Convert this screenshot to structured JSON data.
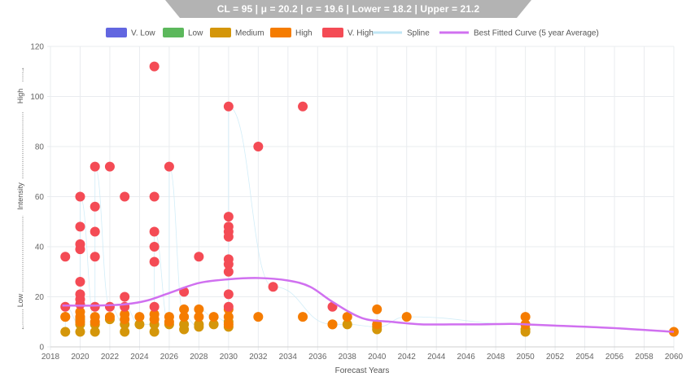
{
  "header": {
    "stats": "CL = 95 | μ = 20.2 | σ = 19.6 | Lower = 18.2 | Upper = 21.2"
  },
  "chart_data": {
    "type": "scatter",
    "xlabel": "Forecast Years",
    "ylabel_low": "Low",
    "ylabel_mid": "Intensity",
    "ylabel_high": "High",
    "xlim": [
      2018,
      2060
    ],
    "ylim": [
      0,
      120
    ],
    "x_ticks": [
      "2018",
      "2020",
      "2022",
      "2024",
      "2026",
      "2028",
      "2030",
      "2032",
      "2034",
      "2036",
      "2038",
      "2040",
      "2042",
      "2044",
      "2046",
      "2048",
      "2050",
      "2052",
      "2054",
      "2056",
      "2058",
      "2060"
    ],
    "y_ticks": [
      "0",
      "20",
      "40",
      "60",
      "80",
      "100",
      "120"
    ],
    "grid": true,
    "legend_position": "top",
    "legend": [
      {
        "label": "V. Low",
        "color": "#6266e0",
        "kind": "box"
      },
      {
        "label": "Low",
        "color": "#5cb85c",
        "kind": "box"
      },
      {
        "label": "Medium",
        "color": "#d4960a",
        "kind": "box"
      },
      {
        "label": "High",
        "color": "#f57c00",
        "kind": "box"
      },
      {
        "label": "V. High",
        "color": "#f44b55",
        "kind": "box"
      },
      {
        "label": "Spline",
        "color": "#bfe6f5",
        "kind": "line"
      },
      {
        "label": "Best Fitted Curve (5 year Average)",
        "color": "#d070f0",
        "kind": "line"
      }
    ],
    "series": [
      {
        "name": "V. High",
        "color": "#f44b55",
        "points": [
          [
            2019,
            36
          ],
          [
            2019,
            16
          ],
          [
            2020,
            60
          ],
          [
            2020,
            48
          ],
          [
            2020,
            41
          ],
          [
            2020,
            39
          ],
          [
            2020,
            26
          ],
          [
            2020,
            21
          ],
          [
            2020,
            19
          ],
          [
            2020,
            17
          ],
          [
            2021,
            72
          ],
          [
            2021,
            56
          ],
          [
            2021,
            46
          ],
          [
            2021,
            36
          ],
          [
            2021,
            16
          ],
          [
            2022,
            72
          ],
          [
            2022,
            16
          ],
          [
            2023,
            60
          ],
          [
            2023,
            20
          ],
          [
            2023,
            16
          ],
          [
            2025,
            112
          ],
          [
            2025,
            60
          ],
          [
            2025,
            46
          ],
          [
            2025,
            40
          ],
          [
            2025,
            34
          ],
          [
            2025,
            16
          ],
          [
            2026,
            72
          ],
          [
            2027,
            22
          ],
          [
            2028,
            36
          ],
          [
            2030,
            96
          ],
          [
            2030,
            52
          ],
          [
            2030,
            48
          ],
          [
            2030,
            46
          ],
          [
            2030,
            44
          ],
          [
            2030,
            35
          ],
          [
            2030,
            33
          ],
          [
            2030,
            30
          ],
          [
            2030,
            21
          ],
          [
            2030,
            16
          ],
          [
            2032,
            80
          ],
          [
            2033,
            24
          ],
          [
            2035,
            96
          ],
          [
            2037,
            16
          ]
        ]
      },
      {
        "name": "High",
        "color": "#f57c00",
        "points": [
          [
            2019,
            12
          ],
          [
            2020,
            14
          ],
          [
            2020,
            12
          ],
          [
            2020,
            10
          ],
          [
            2021,
            12
          ],
          [
            2021,
            10
          ],
          [
            2022,
            12
          ],
          [
            2023,
            13
          ],
          [
            2023,
            11
          ],
          [
            2024,
            12
          ],
          [
            2025,
            13
          ],
          [
            2025,
            11
          ],
          [
            2026,
            12
          ],
          [
            2026,
            10
          ],
          [
            2027,
            15
          ],
          [
            2027,
            12
          ],
          [
            2028,
            15
          ],
          [
            2028,
            12
          ],
          [
            2029,
            12
          ],
          [
            2030,
            15
          ],
          [
            2030,
            12
          ],
          [
            2030,
            9
          ],
          [
            2032,
            12
          ],
          [
            2035,
            12
          ],
          [
            2037,
            9
          ],
          [
            2038,
            12
          ],
          [
            2040,
            15
          ],
          [
            2040,
            9
          ],
          [
            2042,
            12
          ],
          [
            2050,
            12
          ],
          [
            2050,
            9
          ],
          [
            2060,
            6
          ]
        ]
      },
      {
        "name": "Medium",
        "color": "#d4960a",
        "points": [
          [
            2019,
            12
          ],
          [
            2019,
            6
          ],
          [
            2020,
            11
          ],
          [
            2020,
            9
          ],
          [
            2020,
            6
          ],
          [
            2021,
            9
          ],
          [
            2021,
            6
          ],
          [
            2022,
            11
          ],
          [
            2023,
            9
          ],
          [
            2023,
            6
          ],
          [
            2024,
            9
          ],
          [
            2025,
            9
          ],
          [
            2025,
            6
          ],
          [
            2026,
            9
          ],
          [
            2027,
            9
          ],
          [
            2027,
            7
          ],
          [
            2028,
            9
          ],
          [
            2028,
            8
          ],
          [
            2029,
            9
          ],
          [
            2030,
            10
          ],
          [
            2030,
            8
          ],
          [
            2037,
            9
          ],
          [
            2038,
            9
          ],
          [
            2040,
            8
          ],
          [
            2040,
            7
          ],
          [
            2050,
            7
          ],
          [
            2050,
            6
          ]
        ]
      },
      {
        "name": "Best Fitted Curve (5 year Average)",
        "color": "#d070f0",
        "points": [
          [
            2018.8,
            16.5
          ],
          [
            2021,
            16.5
          ],
          [
            2023,
            17
          ],
          [
            2024.5,
            18.5
          ],
          [
            2026,
            21.5
          ],
          [
            2028,
            25.5
          ],
          [
            2030,
            27
          ],
          [
            2032,
            27.5
          ],
          [
            2034,
            26.5
          ],
          [
            2035.5,
            24
          ],
          [
            2037,
            18
          ],
          [
            2039,
            11.5
          ],
          [
            2041,
            10
          ],
          [
            2043,
            9
          ],
          [
            2045,
            9
          ],
          [
            2047,
            9
          ],
          [
            2049,
            9.2
          ],
          [
            2050,
            9
          ],
          [
            2052,
            8.5
          ],
          [
            2056,
            7.5
          ],
          [
            2060,
            6
          ]
        ]
      }
    ]
  }
}
